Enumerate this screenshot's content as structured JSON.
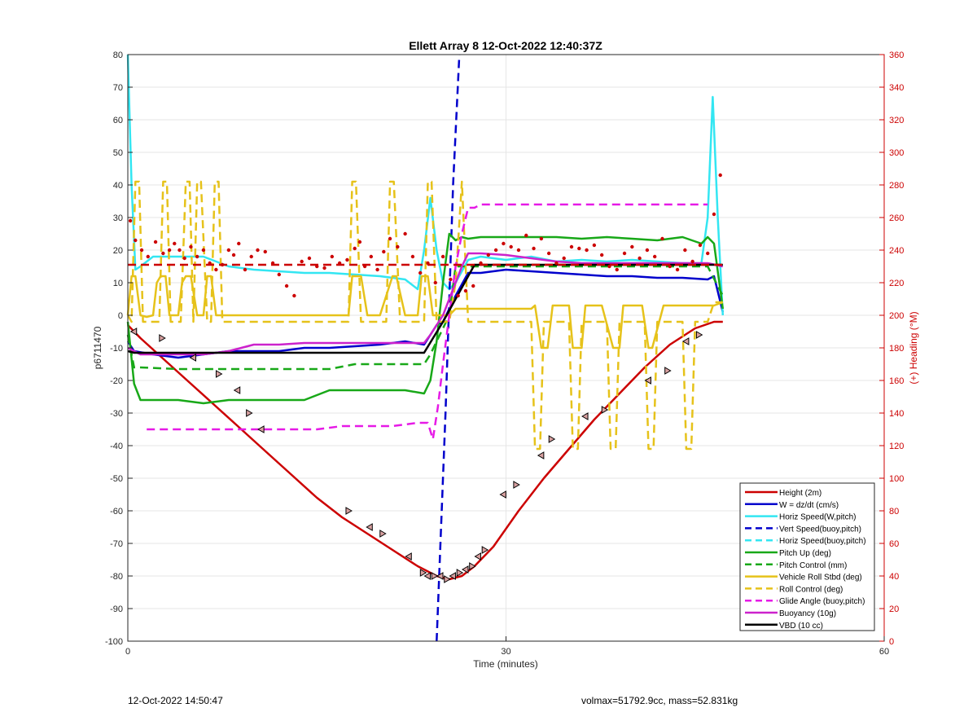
{
  "footer": {
    "timestamp": "12-Oct-2022 14:50:47",
    "summary": "volmax=51792.9cc, mass=52.831kg"
  },
  "chart_data": {
    "type": "line",
    "title": "Ellett Array 8 12-Oct-2022 12:40:37Z",
    "xlabel": "Time (minutes)",
    "ylabel": "p6711470",
    "y2label": "(+) Heading (°M)",
    "xlim": [
      0,
      60
    ],
    "ylim": [
      -100,
      80
    ],
    "y2lim": [
      0,
      360
    ],
    "xticks": [
      0,
      30,
      60
    ],
    "yticks": [
      -100,
      -90,
      -80,
      -70,
      -60,
      -50,
      -40,
      -30,
      -20,
      -10,
      0,
      10,
      20,
      30,
      40,
      50,
      60,
      70,
      80
    ],
    "y2ticks": [
      0,
      20,
      40,
      60,
      80,
      100,
      120,
      140,
      160,
      180,
      200,
      220,
      240,
      260,
      280,
      300,
      320,
      340,
      360
    ],
    "grid": true,
    "legend_position": "bottom-right",
    "series": [
      {
        "name": "Height (2m)",
        "color": "#cc0000",
        "style": "solid",
        "marker": "triangle",
        "x": [
          0,
          1,
          3,
          5,
          7,
          9,
          11,
          13,
          15,
          17,
          19,
          21,
          23,
          24.5,
          25.5,
          26.5,
          27.5,
          29,
          31,
          33,
          35,
          37,
          39,
          41,
          43,
          45,
          46.5,
          47.2
        ],
        "y": [
          -3,
          -7,
          -14,
          -21,
          -28,
          -35,
          -42,
          -49,
          -56,
          -62,
          -67,
          -72,
          -77,
          -80,
          -81,
          -80,
          -77,
          -71,
          -60,
          -50,
          -41,
          -32,
          -24,
          -16,
          -9,
          -4,
          -2,
          -2
        ]
      },
      {
        "name": "W = dz/dt (cm/s)",
        "color": "#0000cc",
        "style": "solid",
        "x": [
          0,
          0.5,
          2,
          4,
          6,
          8,
          10,
          12,
          14,
          16,
          18,
          20,
          22,
          23.5,
          24,
          24.5,
          25,
          26,
          27,
          28,
          30,
          32,
          34,
          36,
          38,
          40,
          42,
          44,
          46,
          46.5,
          47.2
        ],
        "y": [
          -8,
          -11,
          -12,
          -13,
          -12,
          -11,
          -11,
          -11,
          -10,
          -10,
          -9.5,
          -9,
          -8,
          -9,
          -6,
          -3,
          -2,
          6,
          13,
          13,
          14,
          13.5,
          13,
          12.5,
          12,
          12,
          11.5,
          11.5,
          11,
          12,
          1
        ]
      },
      {
        "name": "Horiz Speed(W,pitch)",
        "color": "#33e6f2",
        "style": "solid",
        "x": [
          0,
          0.3,
          0.6,
          1,
          2,
          4,
          6,
          8,
          10,
          12,
          14,
          16,
          18,
          20,
          22,
          23,
          23.5,
          24,
          24.5,
          25,
          25.5,
          26,
          27,
          28,
          30,
          32,
          34,
          36,
          38,
          40,
          42,
          44,
          45.5,
          46,
          46.4,
          46.8,
          47.2
        ],
        "y": [
          80,
          40,
          14,
          15,
          18,
          18,
          18,
          15,
          14,
          13.5,
          13,
          13,
          12.5,
          12,
          11,
          8,
          20,
          36,
          20,
          10,
          8,
          10,
          17,
          18,
          17,
          18,
          16.5,
          17,
          16.5,
          17,
          16.5,
          16,
          16,
          30,
          67,
          30,
          0
        ]
      },
      {
        "name": "Vert Speed(buoy,pitch)",
        "color": "#0000cc",
        "style": "dashed",
        "x": [
          24.5,
          25.2,
          25.8,
          26.3
        ],
        "y": [
          -100,
          -30,
          40,
          80
        ]
      },
      {
        "name": "Horiz Speed(buoy,pitch)",
        "color": "#33e6f2",
        "style": "dashed",
        "x": [],
        "y": []
      },
      {
        "name": "Pitch Up (deg)",
        "color": "#18a818",
        "style": "solid",
        "x": [
          0,
          0.5,
          1,
          2,
          4,
          6,
          8,
          10,
          12,
          14,
          16,
          18,
          20,
          22,
          23.5,
          24,
          24.5,
          25,
          25.5,
          26,
          26.5,
          27,
          28,
          30,
          32,
          34,
          36,
          38,
          40,
          42,
          44,
          45.5,
          46,
          46.5,
          47.2
        ],
        "y": [
          -2,
          -21,
          -26,
          -26,
          -26,
          -27,
          -26,
          -26,
          -26,
          -26,
          -23,
          -23,
          -23,
          -23,
          -24,
          -20,
          -8,
          10,
          25,
          23,
          24,
          23.5,
          24,
          24,
          24,
          24,
          23.5,
          24,
          23.5,
          23,
          24,
          22,
          24,
          22,
          2
        ]
      },
      {
        "name": "Pitch Control (mm)",
        "color": "#18a818",
        "style": "dashed",
        "x": [
          0,
          0.5,
          1,
          4,
          6,
          8,
          10,
          12,
          14,
          16,
          18,
          20,
          22,
          23.5,
          24,
          24.5,
          25,
          25.5,
          26,
          28,
          30,
          34,
          38,
          42,
          46,
          47.2
        ],
        "y": [
          -6,
          -16,
          -16,
          -16.5,
          -16.5,
          -16.5,
          -16.5,
          -16.5,
          -16.5,
          -16.5,
          -15,
          -15,
          -15,
          -15,
          -12,
          -8,
          -4,
          0,
          15,
          15,
          15,
          15,
          15,
          15,
          15,
          6
        ]
      },
      {
        "name": "Vehicle Roll Stbd (deg)",
        "color": "#e6c21a",
        "style": "solid",
        "x": [
          0,
          0.3,
          0.6,
          1,
          1.5,
          2,
          2.3,
          2.6,
          3,
          3.3,
          3.6,
          4,
          4.3,
          4.6,
          5,
          5.5,
          6,
          6.3,
          6.6,
          7,
          8,
          10,
          12,
          14,
          16,
          17.5,
          17.8,
          18.5,
          19,
          19.3,
          20,
          21,
          21.3,
          22,
          22.5,
          23,
          23.3,
          23.8,
          24.2,
          24.5,
          25,
          25.5,
          26,
          26.5,
          27,
          28,
          30,
          32,
          32.3,
          32.8,
          33.3,
          33.7,
          34.5,
          35,
          35.3,
          36,
          36.3,
          36.8,
          37.3,
          37.6,
          38.5,
          39,
          39.3,
          40,
          40.3,
          40.8,
          41.3,
          41.6,
          42.5,
          43,
          43.3,
          44,
          44.3,
          44.8,
          45.5,
          46,
          46.5,
          47.2
        ],
        "y": [
          0,
          12,
          12,
          0,
          -0.5,
          0,
          10,
          12,
          12,
          0,
          0,
          0,
          10,
          12,
          12,
          0,
          0,
          12,
          12,
          0,
          0,
          0,
          0,
          0,
          0,
          0,
          12,
          12,
          0,
          0,
          0,
          12,
          12,
          0,
          0,
          0,
          12,
          12,
          0,
          0,
          0,
          0,
          2,
          2,
          2,
          2,
          2,
          2,
          3,
          -10,
          -10,
          3,
          3,
          3,
          -10,
          -10,
          3,
          3,
          3,
          3,
          -10,
          -10,
          3,
          3,
          3,
          3,
          -10,
          -10,
          3,
          3,
          3,
          3,
          3,
          3,
          3,
          3,
          3,
          4
        ]
      },
      {
        "name": "Roll Control (deg)",
        "color": "#e6c21a",
        "style": "dashed",
        "x": [
          0,
          0.3,
          0.6,
          0.9,
          1.2,
          1.5,
          2,
          2.5,
          2.8,
          3.1,
          3.4,
          3.7,
          4.2,
          4.6,
          4.9,
          5.2,
          5.5,
          5.8,
          6.3,
          6.6,
          6.9,
          7.2,
          7.5,
          8,
          10,
          12,
          14,
          16,
          17.5,
          17.8,
          18.1,
          18.5,
          18.8,
          19.5,
          20.5,
          20.8,
          21.1,
          21.6,
          21.9,
          22.5,
          23.5,
          23.8,
          24.1,
          24.5,
          25,
          25.5,
          26,
          26.5,
          27,
          28,
          30,
          31.5,
          32,
          32.3,
          32.7,
          33,
          33.5,
          34,
          34.5,
          35,
          35.3,
          35.7,
          36,
          36.5,
          37,
          37.5,
          38,
          38.3,
          38.7,
          39,
          39.5,
          40,
          40.5,
          41,
          41.3,
          41.7,
          42,
          42.5,
          43,
          43.5,
          44,
          44.3,
          44.7,
          45,
          45.5,
          46,
          46.5,
          47.2
        ],
        "y": [
          0,
          -2,
          41,
          41,
          -2,
          -2,
          -2,
          -2,
          41,
          41,
          -2,
          -2,
          -2,
          41,
          41,
          -2,
          41,
          41,
          -2,
          -2,
          41,
          41,
          -2,
          -2,
          -2,
          -2,
          -2,
          -2,
          -2,
          41,
          41,
          -2,
          -2,
          -2,
          -2,
          41,
          41,
          -2,
          -2,
          -2,
          -2,
          41,
          41,
          -2,
          -2,
          -2,
          10,
          41,
          -2,
          -2,
          -2,
          -2,
          -2,
          -41,
          -41,
          -2,
          -2,
          -2,
          -2,
          -2,
          -41,
          -41,
          -2,
          -2,
          -2,
          -2,
          -2,
          -41,
          -41,
          -2,
          -2,
          -2,
          -2,
          -2,
          -41,
          -41,
          -2,
          -2,
          -2,
          -2,
          -2,
          -41,
          -41,
          -2,
          -2,
          -2,
          4,
          4
        ]
      },
      {
        "name": "Glide Angle (buoy,pitch)",
        "color": "#e61ae6",
        "style": "dashed",
        "x": [
          1.5,
          3,
          5,
          7,
          9,
          11,
          13,
          15,
          17,
          19,
          21,
          23,
          23.8,
          24.2,
          24.6,
          25,
          25.5,
          26,
          26.5,
          27,
          27.5,
          28,
          30,
          32,
          34,
          36,
          38,
          40,
          42,
          44,
          46
        ],
        "y": [
          -35,
          -35,
          -35,
          -35,
          -35,
          -35,
          -35,
          -35,
          -34,
          -34,
          -34,
          -33,
          -33,
          -38,
          -28,
          -15,
          0,
          15,
          25,
          33,
          33,
          34,
          34,
          34,
          34,
          34,
          34,
          34,
          34,
          34,
          34
        ]
      },
      {
        "name": "Buoyancy (10g)",
        "color": "#cc22cc",
        "style": "solid",
        "x": [
          0,
          1,
          4,
          6,
          8,
          10,
          12,
          14,
          16,
          18,
          20,
          22,
          23.5,
          24,
          24.5,
          25,
          25.5,
          26,
          26.5,
          27,
          28,
          30,
          32,
          34,
          36,
          38,
          40,
          42,
          44,
          46,
          47.2
        ],
        "y": [
          -10,
          -12,
          -12,
          -12,
          -11,
          -9,
          -9,
          -8.5,
          -8.5,
          -8.5,
          -8.5,
          -8.5,
          -8.5,
          -6,
          -3,
          0,
          5,
          10,
          15,
          19,
          19,
          18.5,
          17.5,
          16.5,
          16,
          16,
          16,
          16,
          16,
          16,
          15
        ]
      },
      {
        "name": "VBD (10 cc)",
        "color": "#000000",
        "style": "solid",
        "x": [
          0,
          0.5,
          2,
          4,
          6,
          8,
          10,
          12,
          14,
          16,
          18,
          20,
          22,
          23.5,
          25,
          27.5,
          30,
          32,
          34,
          36,
          38,
          40,
          42,
          44,
          46,
          47.2
        ],
        "y": [
          -11,
          -11.5,
          -11.5,
          -11.5,
          -11.5,
          -11.5,
          -11.5,
          -11.5,
          -11.5,
          -11.5,
          -11.5,
          -11.5,
          -11.5,
          -11.5,
          -2,
          15.5,
          15.5,
          15.5,
          15.5,
          15.5,
          15.5,
          15.5,
          15.5,
          15.5,
          15.5,
          15.5
        ]
      }
    ],
    "markers": {
      "name": "Height (2m)",
      "x": [
        0.5,
        2.7,
        5.2,
        7.2,
        8.7,
        9.6,
        10.6,
        17.5,
        19.2,
        20.2,
        22.3,
        23.4,
        23.8,
        24.3,
        24.8,
        25.3,
        25.8,
        26.3,
        26.8,
        27.3,
        27.8,
        28.3,
        29.8,
        30.8,
        32.8,
        33.6,
        36.3,
        37.8,
        41.3,
        42.8,
        44.3,
        45.3
      ],
      "y": [
        -5,
        -7,
        -13,
        -18,
        -23,
        -30,
        -35,
        -60,
        -65,
        -67,
        -74,
        -79,
        -80,
        -80,
        -80,
        -81,
        -80,
        -79,
        -78,
        -77,
        -74,
        -72,
        -55,
        -52,
        -43,
        -38,
        -31,
        -29,
        -20,
        -17,
        -8,
        -6
      ]
    },
    "heading": {
      "name": "Heading",
      "color": "#cc0000",
      "mean": 231,
      "x": [
        0.2,
        0.6,
        1.1,
        1.6,
        2.2,
        2.8,
        3.3,
        3.7,
        4.1,
        4.5,
        5,
        5.5,
        6,
        6.5,
        7,
        7.5,
        8,
        8.4,
        8.8,
        9.3,
        9.8,
        10.3,
        10.9,
        11.5,
        12,
        12.6,
        13.2,
        13.8,
        14.4,
        15,
        15.6,
        16.2,
        16.8,
        17.4,
        18,
        18.4,
        18.8,
        19.3,
        19.8,
        20.3,
        20.8,
        21.4,
        22,
        22.6,
        23.2,
        23.8,
        24.4,
        25,
        25.6,
        26.2,
        26.8,
        27.4,
        28,
        28.6,
        29.2,
        29.8,
        30.4,
        31,
        31.6,
        32.2,
        32.8,
        33.4,
        34,
        34.6,
        35.2,
        35.8,
        36.4,
        37,
        37.6,
        38.2,
        38.8,
        39.4,
        40,
        40.6,
        41.2,
        41.8,
        42.4,
        43,
        43.6,
        44.2,
        44.8,
        45.4,
        46,
        46.5,
        47
      ],
      "y": [
        258,
        246,
        240,
        236,
        245,
        238,
        240,
        244,
        240,
        235,
        242,
        236,
        240,
        232,
        228,
        231,
        240,
        237,
        244,
        228,
        236,
        240,
        239,
        232,
        225,
        218,
        212,
        233,
        235,
        230,
        229,
        236,
        232,
        234,
        241,
        245,
        230,
        236,
        228,
        239,
        247,
        242,
        250,
        236,
        226,
        232,
        220,
        236,
        222,
        212,
        215,
        218,
        232,
        237,
        240,
        244,
        242,
        240,
        249,
        241,
        247,
        238,
        232,
        235,
        242,
        241,
        240,
        243,
        237,
        230,
        228,
        238,
        242,
        235,
        240,
        236,
        247,
        230,
        228,
        240,
        233,
        243,
        238,
        262,
        286
      ]
    }
  }
}
